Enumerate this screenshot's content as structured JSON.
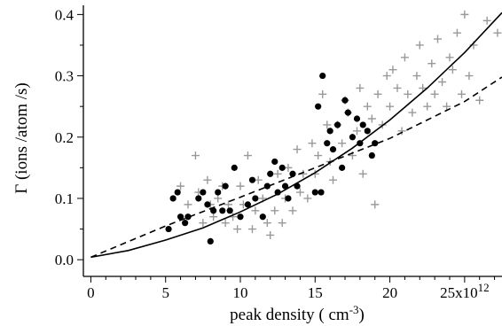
{
  "chart_data": {
    "type": "scatter",
    "title": "",
    "xlabel": "peak density ( cm⁻³)",
    "ylabel": "Γ  (ions /atom /s)",
    "xlim": [
      -0.5,
      27.5
    ],
    "ylim": [
      -0.02,
      0.415
    ],
    "x_ticks": [
      "0",
      "5",
      "10",
      "15",
      "20",
      "25x10¹²"
    ],
    "x_tick_values": [
      0,
      5,
      10,
      15,
      20,
      25
    ],
    "y_ticks": [
      "0.0",
      "0.1",
      "0.2",
      "0.3",
      "0.4"
    ],
    "y_tick_values": [
      0.0,
      0.1,
      0.2,
      0.3,
      0.4
    ],
    "grid": false,
    "legend": "none",
    "series": [
      {
        "marker": "plus",
        "color": "#999999",
        "points": [
          [
            6.0,
            0.12
          ],
          [
            6.5,
            0.09
          ],
          [
            7.0,
            0.17
          ],
          [
            7.2,
            0.11
          ],
          [
            7.5,
            0.06
          ],
          [
            7.8,
            0.13
          ],
          [
            8.0,
            0.09
          ],
          [
            8.2,
            0.07
          ],
          [
            8.5,
            0.1
          ],
          [
            8.8,
            0.12
          ],
          [
            9.0,
            0.06
          ],
          [
            9.2,
            0.09
          ],
          [
            9.5,
            0.07
          ],
          [
            9.8,
            0.05
          ],
          [
            10.0,
            0.12
          ],
          [
            10.2,
            0.09
          ],
          [
            10.5,
            0.17
          ],
          [
            10.8,
            0.05
          ],
          [
            11.0,
            0.08
          ],
          [
            11.2,
            0.13
          ],
          [
            11.5,
            0.1
          ],
          [
            11.8,
            0.06
          ],
          [
            12.0,
            0.04
          ],
          [
            12.3,
            0.08
          ],
          [
            12.5,
            0.14
          ],
          [
            12.8,
            0.06
          ],
          [
            13.0,
            0.1
          ],
          [
            13.2,
            0.15
          ],
          [
            13.5,
            0.08
          ],
          [
            13.8,
            0.18
          ],
          [
            14.0,
            0.11
          ],
          [
            14.2,
            0.14
          ],
          [
            14.5,
            0.1
          ],
          [
            14.8,
            0.19
          ],
          [
            15.0,
            0.14
          ],
          [
            15.2,
            0.17
          ],
          [
            15.5,
            0.27
          ],
          [
            15.8,
            0.22
          ],
          [
            16.0,
            0.16
          ],
          [
            16.2,
            0.13
          ],
          [
            16.5,
            0.22
          ],
          [
            16.8,
            0.19
          ],
          [
            17.0,
            0.26
          ],
          [
            17.2,
            0.24
          ],
          [
            17.5,
            0.17
          ],
          [
            17.8,
            0.21
          ],
          [
            18.0,
            0.28
          ],
          [
            18.2,
            0.14
          ],
          [
            18.5,
            0.25
          ],
          [
            18.8,
            0.23
          ],
          [
            19.0,
            0.09
          ],
          [
            19.2,
            0.27
          ],
          [
            19.5,
            0.22
          ],
          [
            19.8,
            0.3
          ],
          [
            20.0,
            0.25
          ],
          [
            20.2,
            0.31
          ],
          [
            20.5,
            0.28
          ],
          [
            20.8,
            0.21
          ],
          [
            21.0,
            0.33
          ],
          [
            21.2,
            0.27
          ],
          [
            21.5,
            0.24
          ],
          [
            21.8,
            0.3
          ],
          [
            22.0,
            0.35
          ],
          [
            22.2,
            0.28
          ],
          [
            22.5,
            0.25
          ],
          [
            22.8,
            0.32
          ],
          [
            23.0,
            0.27
          ],
          [
            23.2,
            0.36
          ],
          [
            23.5,
            0.29
          ],
          [
            23.8,
            0.25
          ],
          [
            24.0,
            0.33
          ],
          [
            24.2,
            0.31
          ],
          [
            24.5,
            0.37
          ],
          [
            24.8,
            0.27
          ],
          [
            25.0,
            0.4
          ],
          [
            25.3,
            0.3
          ],
          [
            25.6,
            0.35
          ],
          [
            26.0,
            0.26
          ],
          [
            26.5,
            0.39
          ],
          [
            27.2,
            0.37
          ]
        ]
      },
      {
        "marker": "filled-circle",
        "color": "#000000",
        "points": [
          [
            5.2,
            0.05
          ],
          [
            5.5,
            0.1
          ],
          [
            5.8,
            0.11
          ],
          [
            6.0,
            0.07
          ],
          [
            6.3,
            0.06
          ],
          [
            6.5,
            0.07
          ],
          [
            7.2,
            0.1
          ],
          [
            7.5,
            0.11
          ],
          [
            7.8,
            0.09
          ],
          [
            8.0,
            0.03
          ],
          [
            8.2,
            0.08
          ],
          [
            8.5,
            0.11
          ],
          [
            8.8,
            0.08
          ],
          [
            9.0,
            0.12
          ],
          [
            9.3,
            0.08
          ],
          [
            9.6,
            0.15
          ],
          [
            10.0,
            0.07
          ],
          [
            10.5,
            0.09
          ],
          [
            10.8,
            0.13
          ],
          [
            11.0,
            0.1
          ],
          [
            11.5,
            0.07
          ],
          [
            11.8,
            0.12
          ],
          [
            12.0,
            0.14
          ],
          [
            12.3,
            0.16
          ],
          [
            12.5,
            0.11
          ],
          [
            12.8,
            0.15
          ],
          [
            13.0,
            0.12
          ],
          [
            13.2,
            0.1
          ],
          [
            13.5,
            0.14
          ],
          [
            13.8,
            0.12
          ],
          [
            15.0,
            0.11
          ],
          [
            15.2,
            0.25
          ],
          [
            15.4,
            0.11
          ],
          [
            15.5,
            0.3
          ],
          [
            15.8,
            0.19
          ],
          [
            16.0,
            0.21
          ],
          [
            16.2,
            0.18
          ],
          [
            16.5,
            0.22
          ],
          [
            16.8,
            0.15
          ],
          [
            17.0,
            0.26
          ],
          [
            17.2,
            0.24
          ],
          [
            17.5,
            0.2
          ],
          [
            17.8,
            0.23
          ],
          [
            18.0,
            0.19
          ],
          [
            18.2,
            0.22
          ],
          [
            18.5,
            0.21
          ],
          [
            18.8,
            0.17
          ],
          [
            19.0,
            0.19
          ]
        ]
      },
      {
        "line": "solid",
        "color": "#000000",
        "x": [
          0,
          2.5,
          5,
          7.5,
          10,
          12.5,
          15,
          17.5,
          20,
          22.5,
          25,
          27.5
        ],
        "y": [
          0.004,
          0.015,
          0.032,
          0.052,
          0.078,
          0.107,
          0.142,
          0.182,
          0.228,
          0.28,
          0.338,
          0.403
        ]
      },
      {
        "line": "dashed",
        "color": "#000000",
        "x": [
          0,
          5,
          10,
          15,
          20,
          25,
          27.5
        ],
        "y": [
          0.004,
          0.055,
          0.102,
          0.15,
          0.198,
          0.258,
          0.298
        ]
      }
    ]
  }
}
